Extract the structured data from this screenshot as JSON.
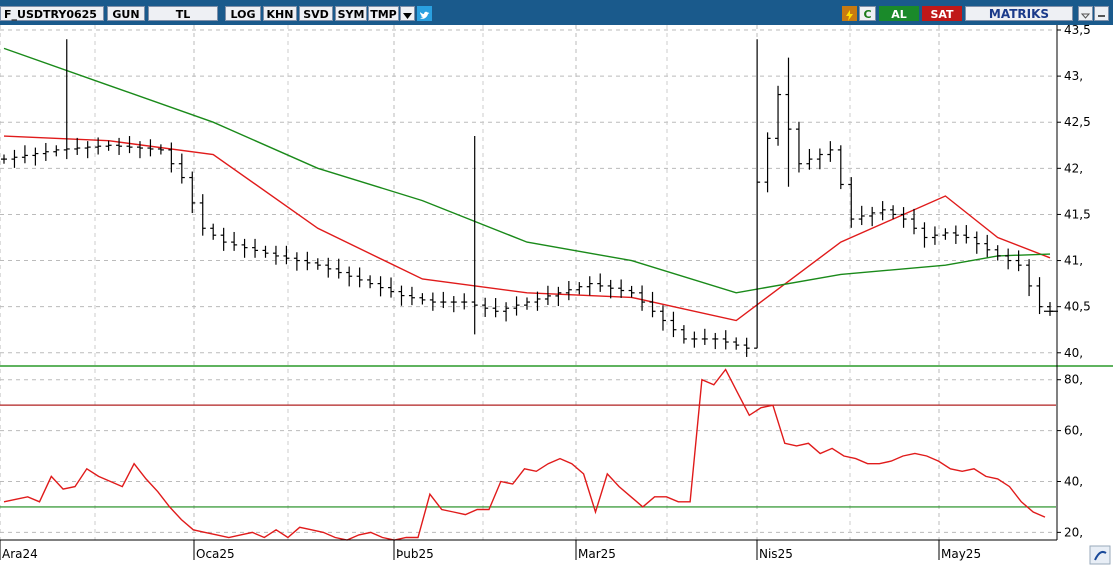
{
  "toolbar": {
    "symbol": "F_USDTRY0625",
    "period": "GUN",
    "currency": "TL",
    "log": "LOG",
    "khn": "KHN",
    "svd": "SVD",
    "sym": "SYM",
    "tmp": "TMP",
    "c_label": "C",
    "buy": "AL",
    "sell": "SAT",
    "brand": "MATRIKS"
  },
  "chart_data": [
    {
      "type": "candlestick",
      "title": "F_USDTRY0625",
      "ylim": [
        39.9,
        43.5
      ],
      "yticks": [
        "43,5",
        "43,",
        "42,5",
        "42,",
        "41,5",
        "41,",
        "40,5",
        "40,"
      ],
      "ytick_values": [
        43.5,
        43.0,
        42.5,
        42.0,
        41.5,
        41.0,
        40.5,
        40.0
      ],
      "xlabels": [
        "Ara24",
        "Oca25",
        "Þub25",
        "Mar25",
        "Nis25",
        "May25"
      ],
      "n_bars": 101,
      "grid": true,
      "ohlc_series": [
        {
          "name": "F_USDTRY0625",
          "color": "#000000"
        }
      ],
      "overlay_series": [
        {
          "color": "#e01b1b",
          "x": [
            0,
            10,
            20,
            30,
            40,
            50,
            60,
            70,
            80,
            90,
            95,
            100
          ],
          "values": [
            42.35,
            42.3,
            42.15,
            41.35,
            40.8,
            40.65,
            40.6,
            40.35,
            41.2,
            41.7,
            41.25,
            41.03
          ]
        },
        {
          "color": "#1a8a1a",
          "x": [
            0,
            10,
            20,
            30,
            40,
            50,
            60,
            70,
            80,
            90,
            95,
            100
          ],
          "values": [
            43.3,
            42.9,
            42.5,
            42.0,
            41.65,
            41.2,
            41.0,
            40.65,
            40.85,
            40.95,
            41.05,
            41.07
          ]
        }
      ]
    },
    {
      "type": "line",
      "ylim": [
        17,
        85
      ],
      "yticks": [
        "80,",
        "60,",
        "40,",
        "20,"
      ],
      "ytick_values": [
        80,
        60,
        40,
        20
      ],
      "hlines": [
        {
          "value": 70,
          "color": "#b02020"
        },
        {
          "value": 30,
          "color": "#1a8a1a"
        }
      ],
      "series": [
        {
          "color": "#e01b1b",
          "values": [
            32,
            33,
            34,
            32,
            42,
            37,
            38,
            45,
            42,
            40,
            38,
            47,
            41,
            36,
            30,
            25,
            21,
            20,
            19,
            18,
            19,
            20,
            18,
            21,
            18,
            22,
            21,
            20,
            18,
            17,
            19,
            20,
            18,
            17,
            18,
            18,
            35,
            29,
            28,
            27,
            29,
            29,
            40,
            39,
            45,
            44,
            47,
            49,
            47,
            43,
            28,
            43,
            38,
            34,
            30,
            34,
            34,
            32,
            32,
            80,
            78,
            84,
            75,
            66,
            69,
            70,
            55,
            54,
            55,
            51,
            53,
            50,
            49,
            47,
            47,
            48,
            50,
            51,
            50,
            48,
            45,
            44,
            45,
            42,
            41,
            38,
            32,
            28,
            26
          ]
        }
      ]
    }
  ]
}
